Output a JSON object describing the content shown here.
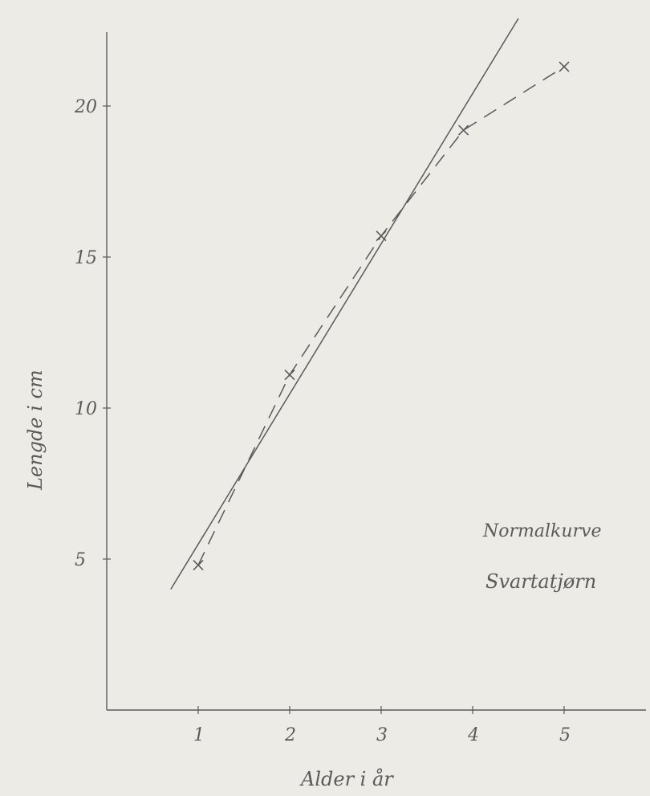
{
  "chart_data": {
    "type": "line",
    "title": "",
    "xlabel": "Alder i år",
    "ylabel": "Lengde i cm",
    "x_ticks": [
      1,
      2,
      3,
      4,
      5
    ],
    "y_ticks": [
      5,
      10,
      15,
      20
    ],
    "xlim": [
      0,
      6
    ],
    "ylim": [
      0,
      23
    ],
    "grid": false,
    "series": [
      {
        "name": "Normalkurve",
        "style": "solid",
        "x": [
          0.7,
          4.5
        ],
        "y": [
          4,
          22.9
        ]
      },
      {
        "name": "Svartatjørn",
        "style": "dashed",
        "marker": "x",
        "x": [
          1,
          2,
          3,
          3.9,
          5
        ],
        "y": [
          4.8,
          11.1,
          15.7,
          19.2,
          21.3
        ]
      }
    ],
    "legend": [
      {
        "label": "Normalkurve"
      },
      {
        "label": "Svartatjørn"
      }
    ],
    "colors": {
      "background": "#ecebe6",
      "ink": "#5a5a5a"
    }
  }
}
